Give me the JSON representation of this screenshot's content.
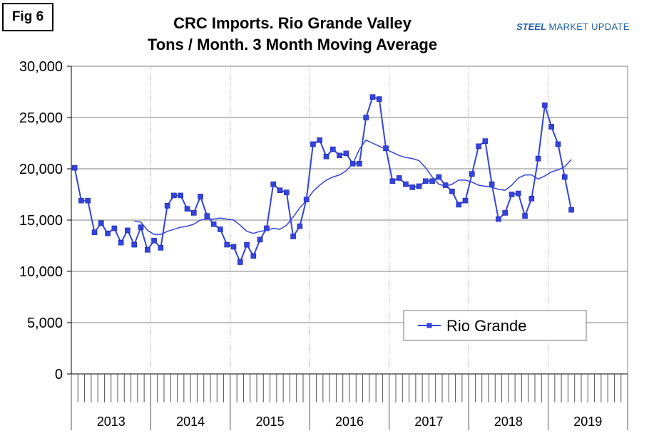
{
  "fig_label": "Fig 6",
  "brand": {
    "part1": "STEEL",
    "part2": "MARKET UPDATE"
  },
  "colors": {
    "series": "#3344dd",
    "grid": "#808080",
    "axis": "#808080"
  },
  "chart_data": {
    "type": "line",
    "title": [
      "CRC Imports. Rio Grande Valley",
      "Tons / Month. 3 Month Moving Average"
    ],
    "xlabel": "",
    "ylabel": "",
    "ylim": [
      0,
      30000
    ],
    "yticks": [
      0,
      5000,
      10000,
      15000,
      20000,
      25000,
      30000
    ],
    "ytick_labels": [
      "0",
      "5,000",
      "10,000",
      "15,000",
      "20,000",
      "25,000",
      "30,000"
    ],
    "year_labels": [
      "2013",
      "2014",
      "2015",
      "2016",
      "2017",
      "2018",
      "2019"
    ],
    "months_per_year": 12,
    "grid": "horizontal and vertical at year boundaries",
    "legend": {
      "position": "lower-right",
      "entries": [
        "Rio Grande"
      ]
    },
    "series": [
      {
        "name": "Rio Grande",
        "marker": "square",
        "start_month": 1,
        "values": [
          20100,
          16900,
          16900,
          13800,
          14700,
          13700,
          14200,
          12800,
          14000,
          12600,
          14300,
          12100,
          13000,
          12300,
          16400,
          17400,
          17400,
          16100,
          15700,
          17300,
          15400,
          14600,
          14100,
          12600,
          12400,
          10900,
          12600,
          11500,
          13100,
          14200,
          18500,
          17900,
          17700,
          13400,
          14400,
          17000,
          22400,
          22800,
          21200,
          21900,
          21300,
          21500,
          20500,
          20500,
          25000,
          27000,
          26800,
          22000,
          18800,
          19100,
          18500,
          18200,
          18300,
          18800,
          18800,
          19200,
          18400,
          17800,
          16500,
          16900,
          19500,
          22200,
          22700,
          18500,
          15100,
          15700,
          17500,
          17600,
          15400,
          17100,
          21000,
          26200,
          24100,
          22400,
          19200,
          16000
        ]
      },
      {
        "type": "trend",
        "marker": "none",
        "start_month": 10,
        "values": [
          14900,
          14800,
          14000,
          13600,
          13600,
          13900,
          14100,
          14300,
          14400,
          14600,
          15000,
          15100,
          15100,
          15200,
          15100,
          15000,
          14500,
          13900,
          13700,
          13900,
          14000,
          14200,
          14100,
          14500,
          15300,
          16200,
          16900,
          17800,
          18400,
          18900,
          19200,
          19400,
          19800,
          20500,
          21900,
          22800,
          22500,
          22200,
          21900,
          21600,
          21300,
          21100,
          21000,
          20800,
          20100,
          19200,
          18500,
          18300,
          18500,
          18900,
          18900,
          18700,
          18400,
          18300,
          18200,
          18000,
          17900,
          18400,
          19100,
          19400,
          19400,
          19000,
          19300,
          19700,
          19900,
          20200,
          20900
        ]
      }
    ]
  }
}
